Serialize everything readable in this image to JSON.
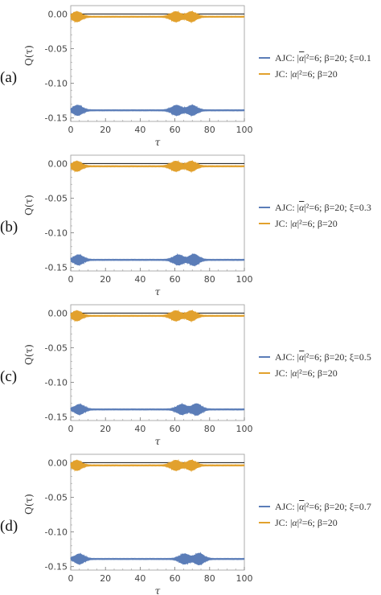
{
  "chart_data": [
    {
      "type": "line",
      "panel_label": "(a)",
      "xlabel": "τ",
      "ylabel": "Q(τ)",
      "xlim": [
        0,
        100
      ],
      "ylim": [
        -0.155,
        0.012
      ],
      "x_ticks": [
        0,
        20,
        40,
        60,
        80,
        100
      ],
      "y_ticks": [
        0.0,
        -0.05,
        -0.1,
        -0.15
      ],
      "y_tick_labels": [
        "0.00",
        "-0.05",
        "-0.10",
        "-0.15"
      ],
      "legend": "right",
      "grid": false,
      "series": [
        {
          "label_main": "AJC: |",
          "label_alpha": "α",
          "label_rest": "|²=6; β=20; ξ=0.1",
          "color": "#5b7db8",
          "baseline": -0.139,
          "envelopes": [
            {
              "center": 4,
              "width": 3.6,
              "amp": 0.007
            },
            {
              "center": 61,
              "width": 3.8,
              "amp": 0.007
            },
            {
              "center": 70,
              "width": 3.6,
              "amp": 0.007
            }
          ]
        },
        {
          "label_main": "JC: |",
          "label_alpha": "α",
          "label_rest": "|²=6; β=20",
          "color": "#e2a12d",
          "baseline": -0.004,
          "envelopes": [
            {
              "center": 3.5,
              "width": 3.6,
              "amp": 0.007
            },
            {
              "center": 60.5,
              "width": 3.8,
              "amp": 0.007
            },
            {
              "center": 69.5,
              "width": 3.6,
              "amp": 0.007
            }
          ]
        }
      ]
    },
    {
      "type": "line",
      "panel_label": "(b)",
      "xlabel": "τ",
      "ylabel": "Q(τ)",
      "xlim": [
        0,
        100
      ],
      "ylim": [
        -0.155,
        0.012
      ],
      "x_ticks": [
        0,
        20,
        40,
        60,
        80,
        100
      ],
      "y_ticks": [
        0.0,
        -0.05,
        -0.1,
        -0.15
      ],
      "y_tick_labels": [
        "0.00",
        "-0.05",
        "-0.10",
        "-0.15"
      ],
      "legend": "right",
      "grid": false,
      "series": [
        {
          "label_main": "AJC: |",
          "label_alpha": "α",
          "label_rest": "|²=6; β=20; ξ=0.3",
          "color": "#5b7db8",
          "baseline": -0.139,
          "envelopes": [
            {
              "center": 4.5,
              "width": 3.6,
              "amp": 0.007
            },
            {
              "center": 62,
              "width": 3.8,
              "amp": 0.007
            },
            {
              "center": 71,
              "width": 3.6,
              "amp": 0.008
            }
          ]
        },
        {
          "label_main": "JC: |",
          "label_alpha": "α",
          "label_rest": "|²=6; β=20",
          "color": "#e2a12d",
          "baseline": -0.004,
          "envelopes": [
            {
              "center": 3.5,
              "width": 3.6,
              "amp": 0.007
            },
            {
              "center": 60.5,
              "width": 3.8,
              "amp": 0.007
            },
            {
              "center": 69.5,
              "width": 3.6,
              "amp": 0.007
            }
          ]
        }
      ]
    },
    {
      "type": "line",
      "panel_label": "(c)",
      "xlabel": "τ",
      "ylabel": "Q(τ)",
      "xlim": [
        0,
        100
      ],
      "ylim": [
        -0.155,
        0.012
      ],
      "x_ticks": [
        0,
        20,
        40,
        60,
        80,
        100
      ],
      "y_ticks": [
        0.0,
        -0.05,
        -0.1,
        -0.15
      ],
      "y_tick_labels": [
        "0.00",
        "-0.05",
        "-0.10",
        "-0.15"
      ],
      "legend": "right",
      "grid": false,
      "series": [
        {
          "label_main": "AJC: |",
          "label_alpha": "α",
          "label_rest": "|²=6; β=20; ξ=0.5",
          "color": "#5b7db8",
          "baseline": -0.139,
          "envelopes": [
            {
              "center": 5,
              "width": 3.6,
              "amp": 0.007
            },
            {
              "center": 64,
              "width": 3.8,
              "amp": 0.007
            },
            {
              "center": 72.5,
              "width": 3.6,
              "amp": 0.008
            }
          ]
        },
        {
          "label_main": "JC: |",
          "label_alpha": "α",
          "label_rest": "|²=6; β=20",
          "color": "#e2a12d",
          "baseline": -0.004,
          "envelopes": [
            {
              "center": 3.5,
              "width": 3.6,
              "amp": 0.007
            },
            {
              "center": 60.5,
              "width": 3.8,
              "amp": 0.007
            },
            {
              "center": 69.5,
              "width": 3.6,
              "amp": 0.007
            }
          ]
        }
      ]
    },
    {
      "type": "line",
      "panel_label": "(d)",
      "xlabel": "τ",
      "ylabel": "Q(τ)",
      "xlim": [
        0,
        100
      ],
      "ylim": [
        -0.155,
        0.012
      ],
      "x_ticks": [
        0,
        20,
        40,
        60,
        80,
        100
      ],
      "y_ticks": [
        0.0,
        -0.05,
        -0.1,
        -0.15
      ],
      "y_tick_labels": [
        "0.00",
        "-0.05",
        "-0.10",
        "-0.15"
      ],
      "legend": "right",
      "grid": false,
      "series": [
        {
          "label_main": "AJC: |",
          "label_alpha": "α",
          "label_rest": "|²=6; β=20; ξ=0.7",
          "color": "#5b7db8",
          "baseline": -0.139,
          "envelopes": [
            {
              "center": 5,
              "width": 3.6,
              "amp": 0.007
            },
            {
              "center": 65.5,
              "width": 3.8,
              "amp": 0.007
            },
            {
              "center": 74,
              "width": 3.6,
              "amp": 0.008
            }
          ]
        },
        {
          "label_main": "JC: |",
          "label_alpha": "α",
          "label_rest": "|²=6; β=20",
          "color": "#e2a12d",
          "baseline": -0.004,
          "envelopes": [
            {
              "center": 3.5,
              "width": 3.6,
              "amp": 0.007
            },
            {
              "center": 60.5,
              "width": 3.8,
              "amp": 0.007
            },
            {
              "center": 69.5,
              "width": 3.6,
              "amp": 0.007
            }
          ]
        }
      ]
    }
  ]
}
